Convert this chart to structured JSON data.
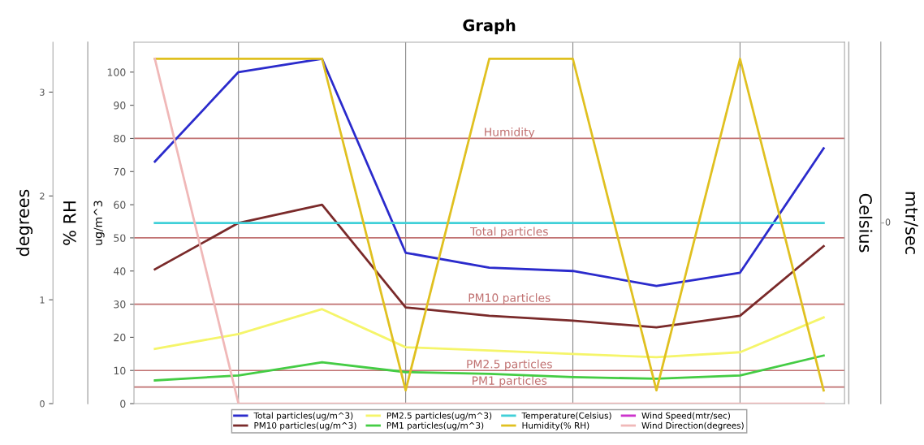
{
  "chart_data": {
    "type": "line",
    "title": "Graph",
    "categories": [
      null,
      null,
      null,
      null,
      null,
      null,
      null,
      null,
      null
    ],
    "ylabel": "ug/m^3",
    "ylim": [
      0,
      109
    ],
    "yticks": [
      0,
      10,
      20,
      30,
      40,
      50,
      60,
      70,
      80,
      90,
      100
    ],
    "y2label": "degrees",
    "y2lim": [
      0,
      3.48
    ],
    "y2ticks": [
      0,
      1,
      2,
      3
    ],
    "annotations": [
      "% RH",
      "Celsius",
      "mtr/sec",
      "0"
    ],
    "series": [
      {
        "name": "Total particles(ug/m^3)",
        "color": "#2b2bcc",
        "values": [
          73,
          100,
          104,
          45.5,
          41,
          40,
          35.5,
          39.5,
          77
        ]
      },
      {
        "name": "PM10 particles(ug/m^3)",
        "color": "#7a2a2a",
        "values": [
          40.5,
          54.5,
          60,
          29,
          26.5,
          25,
          23,
          26.5,
          47.5
        ]
      },
      {
        "name": "PM2.5 particles(ug/m^3)",
        "color": "#f5f56a",
        "values": [
          16.5,
          21,
          28.5,
          17,
          16,
          15,
          14,
          15.5,
          26
        ]
      },
      {
        "name": "PM1 particles(ug/m^3)",
        "color": "#44cc44",
        "values": [
          7,
          8.5,
          12.5,
          9.5,
          9,
          8,
          7.5,
          8.5,
          14.5
        ]
      },
      {
        "name": "Temperature(Celsius)",
        "color": "#40d0d8",
        "values": [
          54.5,
          54.5,
          54.5,
          54.5,
          54.5,
          54.5,
          54.5,
          54.5,
          54.5
        ]
      },
      {
        "name": "Humidity(% RH)",
        "color": "#e0c020",
        "values": [
          104,
          104,
          104,
          4,
          104,
          104,
          4,
          104,
          4
        ]
      },
      {
        "name": "Wind Speed(mtr/sec)",
        "color": "#cc33cc",
        "values": [
          null,
          null,
          null,
          null,
          null,
          null,
          null,
          null,
          null
        ]
      },
      {
        "name": "Wind Direction(degrees)",
        "color": "#f0b8b8",
        "axis": "y2",
        "values": [
          3.32,
          0,
          0,
          0,
          0,
          0,
          0,
          0,
          0
        ]
      }
    ],
    "ref_lines": [
      {
        "axis": "y",
        "value": 80,
        "label": "Humidity",
        "color": "#c07070"
      },
      {
        "axis": "y",
        "value": 50,
        "label": "Total particles",
        "color": "#c07070"
      },
      {
        "axis": "y",
        "value": 30,
        "label": "PM10 particles",
        "color": "#c07070"
      },
      {
        "axis": "y",
        "value": 10,
        "label": "PM2.5 particles",
        "color": "#c07070"
      },
      {
        "axis": "y",
        "value": 5,
        "label": "PM1 particles",
        "color": "#c07070"
      }
    ],
    "grid": "x",
    "legend": "bottom",
    "marker": "none",
    "line_style": "solid"
  }
}
